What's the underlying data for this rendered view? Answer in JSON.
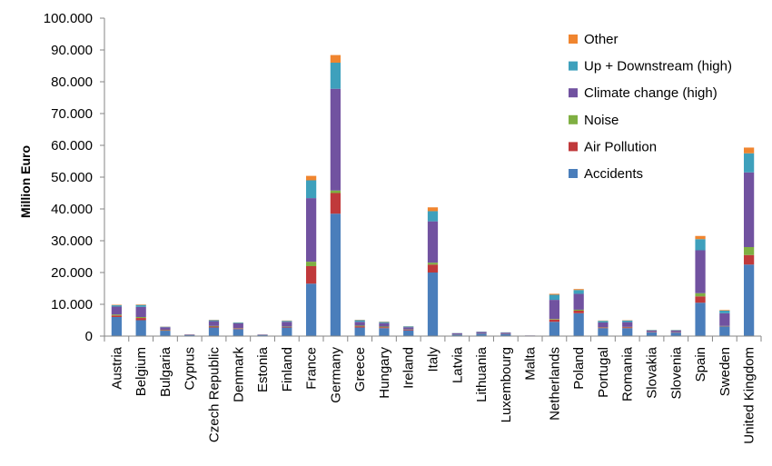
{
  "chart_data": {
    "type": "bar",
    "stacked": true,
    "title": "",
    "xlabel": "",
    "ylabel": "Million Euro",
    "ylim": [
      0,
      100000
    ],
    "ytick_labels": [
      "0",
      "10.000",
      "20.000",
      "30.000",
      "40.000",
      "50.000",
      "60.000",
      "70.000",
      "80.000",
      "90.000",
      "100.000"
    ],
    "grid": false,
    "legend_position": "top-right",
    "categories": [
      "Austria",
      "Belgium",
      "Bulgaria",
      "Cyprus",
      "Czech Republic",
      "Denmark",
      "Estonia",
      "Finland",
      "France",
      "Germany",
      "Greece",
      "Hungary",
      "Ireland",
      "Italy",
      "Latvia",
      "Lithuania",
      "Luxembourg",
      "Malta",
      "Netherlands",
      "Poland",
      "Portugal",
      "Romania",
      "Slovakia",
      "Slovenia",
      "Spain",
      "Sweden",
      "United Kingdom"
    ],
    "series": [
      {
        "name": "Accidents",
        "color": "#4a7ebb",
        "values": [
          6000,
          5000,
          1700,
          300,
          2700,
          2200,
          300,
          2700,
          16500,
          38500,
          2700,
          2500,
          1800,
          20000,
          500,
          800,
          600,
          100,
          4500,
          7200,
          2500,
          2500,
          1200,
          1100,
          10500,
          3000,
          22500
        ]
      },
      {
        "name": "Air Pollution",
        "color": "#c0393b",
        "values": [
          500,
          700,
          200,
          50,
          300,
          200,
          30,
          200,
          5500,
          6500,
          400,
          300,
          200,
          2500,
          50,
          50,
          50,
          20,
          700,
          800,
          200,
          300,
          100,
          100,
          2000,
          100,
          3000
        ]
      },
      {
        "name": "Noise",
        "color": "#7faf42",
        "values": [
          300,
          300,
          100,
          20,
          200,
          100,
          20,
          100,
          1400,
          800,
          200,
          200,
          100,
          600,
          30,
          30,
          30,
          10,
          200,
          300,
          100,
          100,
          50,
          50,
          1000,
          100,
          2500
        ]
      },
      {
        "name": "Climate change (high)",
        "color": "#7152a0",
        "values": [
          2500,
          3200,
          800,
          150,
          1500,
          1500,
          150,
          1500,
          20000,
          32000,
          1200,
          1100,
          700,
          13000,
          300,
          400,
          400,
          60,
          6000,
          5000,
          1500,
          1500,
          400,
          500,
          13500,
          4000,
          23500
        ]
      },
      {
        "name": "Up + Downstream (high)",
        "color": "#3ea0bc",
        "values": [
          400,
          600,
          150,
          30,
          300,
          250,
          30,
          300,
          5600,
          8200,
          500,
          350,
          250,
          3200,
          80,
          100,
          100,
          10,
          1600,
          1200,
          500,
          500,
          150,
          150,
          3500,
          800,
          6000
        ]
      },
      {
        "name": "Other",
        "color": "#f0852f",
        "values": [
          150,
          150,
          50,
          10,
          100,
          50,
          10,
          100,
          1400,
          2400,
          100,
          100,
          50,
          1200,
          20,
          20,
          20,
          5,
          300,
          300,
          100,
          100,
          50,
          50,
          1000,
          200,
          1800
        ]
      }
    ],
    "legend_order": [
      "Other",
      "Up + Downstream (high)",
      "Climate change (high)",
      "Noise",
      "Air Pollution",
      "Accidents"
    ]
  }
}
